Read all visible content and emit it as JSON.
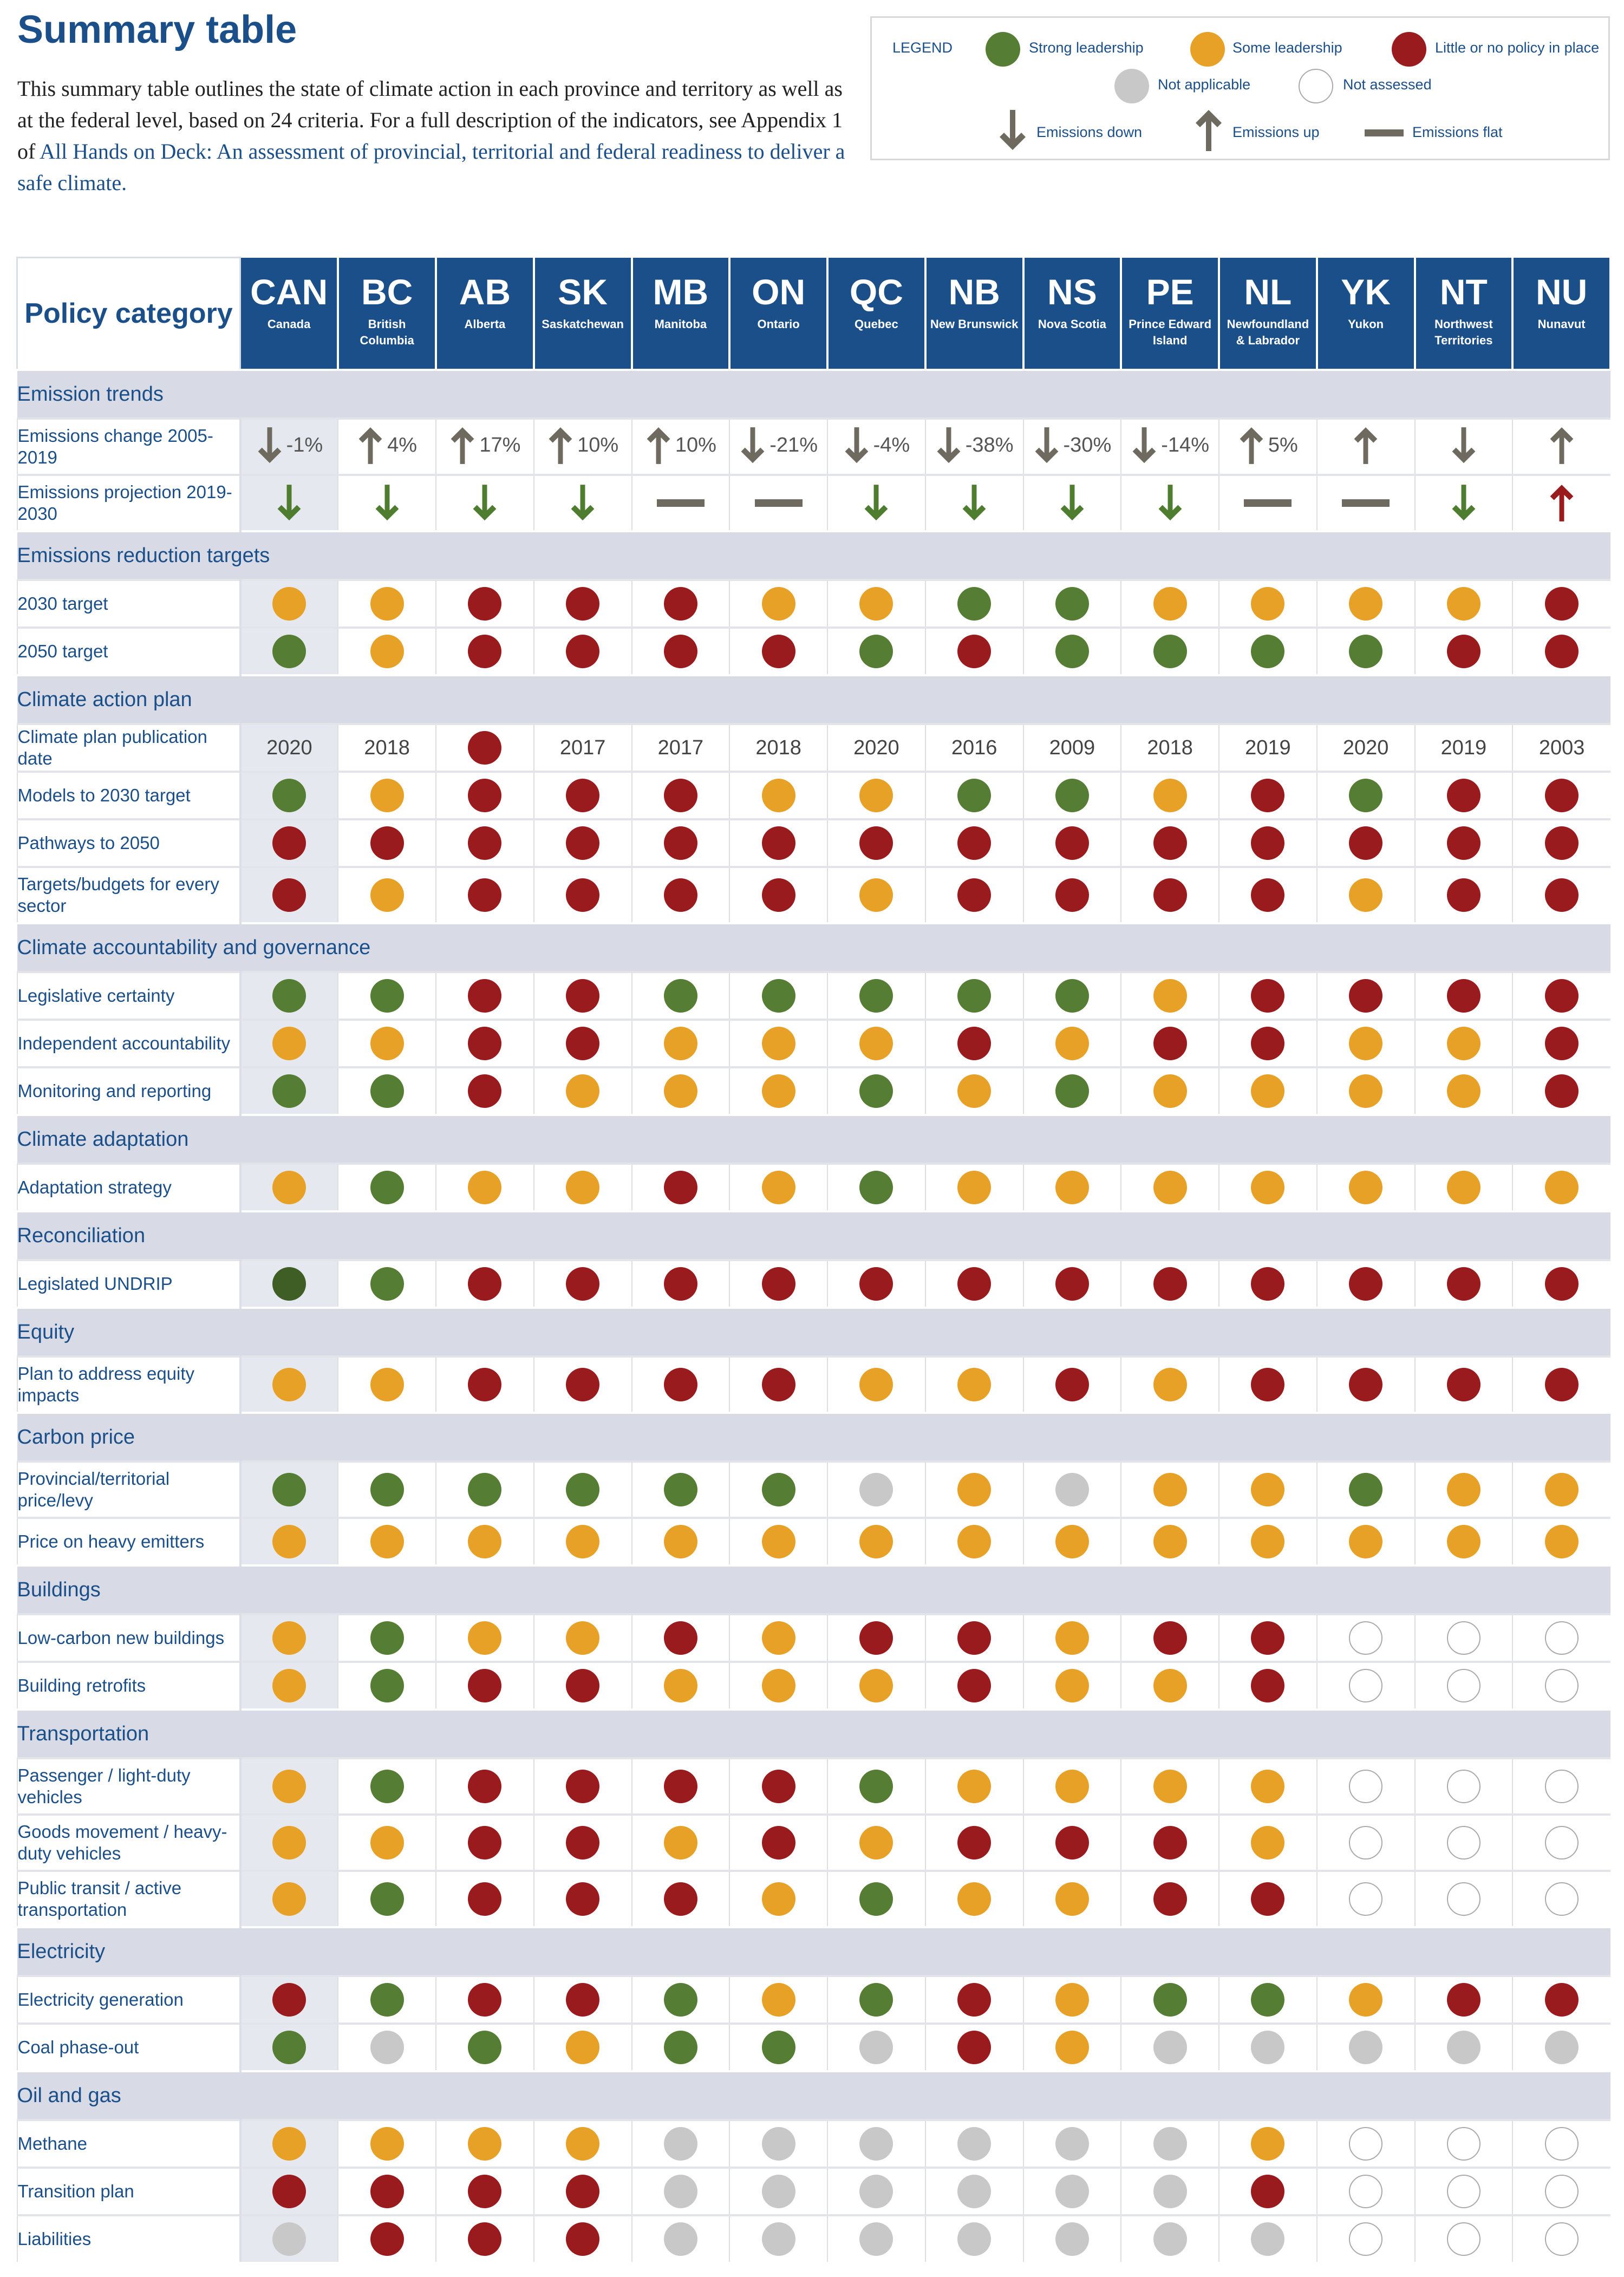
{
  "title": "Summary table",
  "intro": {
    "text": "This summary table outlines the state of climate action in each province and territory as well as at the federal level, based on 24 criteria. For a full description of the indicators, see Appendix 1 of ",
    "link": "All Hands on Deck: An assessment of provincial, territorial and federal readiness to deliver a safe climate."
  },
  "legend": {
    "title": "LEGEND",
    "strong": "Strong leadership",
    "some": "Some  leadership",
    "little": "Little or no policy in place",
    "na": "Not applicable",
    "notassessed": "Not assessed",
    "down": "Emissions down",
    "up": "Emissions up",
    "flat": "Emissions flat"
  },
  "colors": {
    "g": "#567d34",
    "G": "#3e5e26",
    "o": "#e8a127",
    "r": "#991b1d",
    "n": "#c8c8c8",
    "w": "#ffffff",
    "header": "#1b4f8a",
    "arrow": "#6f6a5f",
    "arrow_down": "#4f7d2f",
    "arrow_red": "#991b1d"
  },
  "header": {
    "policy_category": "Policy category"
  },
  "jurisdictions": [
    {
      "abbr": "CAN",
      "name": "Canada"
    },
    {
      "abbr": "BC",
      "name": "British Columbia"
    },
    {
      "abbr": "AB",
      "name": "Alberta"
    },
    {
      "abbr": "SK",
      "name": "Saskatchewan"
    },
    {
      "abbr": "MB",
      "name": "Manitoba"
    },
    {
      "abbr": "ON",
      "name": "Ontario"
    },
    {
      "abbr": "QC",
      "name": "Quebec"
    },
    {
      "abbr": "NB",
      "name": "New Brunswick"
    },
    {
      "abbr": "NS",
      "name": "Nova Scotia"
    },
    {
      "abbr": "PE",
      "name": "Prince Edward Island"
    },
    {
      "abbr": "NL",
      "name": "Newfoundland & Labrador"
    },
    {
      "abbr": "YK",
      "name": "Yukon"
    },
    {
      "abbr": "NT",
      "name": "Northwest Territories"
    },
    {
      "abbr": "NU",
      "name": "Nunavut"
    }
  ],
  "sections": [
    {
      "category": "Emission trends",
      "rows": [
        {
          "label": "Emissions change 2005-2019",
          "tall": true,
          "cells": [
            "down:-1%",
            "up:4%",
            "up:17%",
            "up:10%",
            "up:10%",
            "down:-21%",
            "down:-4%",
            "down:-38%",
            "down:-30%",
            "down:-14%",
            "up:5%",
            "up:",
            "down:",
            "up:"
          ]
        },
        {
          "label": "Emissions projection 2019-2030",
          "tall": true,
          "cells": [
            "gdown",
            "gdown",
            "gdown",
            "gdown",
            "flat",
            "flat",
            "gdown",
            "gdown",
            "gdown",
            "gdown",
            "flat",
            "flat",
            "gdown",
            "rup"
          ]
        }
      ]
    },
    {
      "category": "Emissions reduction targets",
      "rows": [
        {
          "label": "2030 target",
          "cells": [
            "o",
            "o",
            "r",
            "r",
            "r",
            "o",
            "o",
            "g",
            "g",
            "o",
            "o",
            "o",
            "o",
            "r"
          ]
        },
        {
          "label": "2050 target",
          "cells": [
            "g",
            "o",
            "r",
            "r",
            "r",
            "r",
            "g",
            "r",
            "g",
            "g",
            "g",
            "g",
            "r",
            "r"
          ]
        }
      ]
    },
    {
      "category": "Climate action plan",
      "rows": [
        {
          "label": "Climate plan publication date",
          "cells": [
            "y:2020",
            "y:2018",
            "r",
            "y:2017",
            "y:2017",
            "y:2018",
            "y:2020",
            "y:2016",
            "y:2009",
            "y:2018",
            "y:2019",
            "y:2020",
            "y:2019",
            "y:2003"
          ]
        },
        {
          "label": "Models to 2030 target",
          "cells": [
            "g",
            "o",
            "r",
            "r",
            "r",
            "o",
            "o",
            "g",
            "g",
            "o",
            "r",
            "g",
            "r",
            "r"
          ]
        },
        {
          "label": "Pathways to 2050",
          "cells": [
            "r",
            "r",
            "r",
            "r",
            "r",
            "r",
            "r",
            "r",
            "r",
            "r",
            "r",
            "r",
            "r",
            "r"
          ]
        },
        {
          "label": "Targets/budgets for every sector",
          "tall": true,
          "cells": [
            "r",
            "o",
            "r",
            "r",
            "r",
            "r",
            "o",
            "r",
            "r",
            "r",
            "r",
            "o",
            "r",
            "r"
          ]
        }
      ]
    },
    {
      "category": "Climate accountability and governance",
      "rows": [
        {
          "label": "Legislative certainty",
          "cells": [
            "g",
            "g",
            "r",
            "r",
            "g",
            "g",
            "g",
            "g",
            "g",
            "o",
            "r",
            "r",
            "r",
            "r"
          ]
        },
        {
          "label": "Independent accountability",
          "cells": [
            "o",
            "o",
            "r",
            "r",
            "o",
            "o",
            "o",
            "r",
            "o",
            "r",
            "r",
            "o",
            "o",
            "r"
          ]
        },
        {
          "label": "Monitoring and reporting",
          "cells": [
            "g",
            "g",
            "r",
            "o",
            "o",
            "o",
            "g",
            "o",
            "g",
            "o",
            "o",
            "o",
            "o",
            "r"
          ]
        }
      ]
    },
    {
      "category": "Climate adaptation",
      "rows": [
        {
          "label": "Adaptation strategy",
          "cells": [
            "o",
            "g",
            "o",
            "o",
            "r",
            "o",
            "g",
            "o",
            "o",
            "o",
            "o",
            "o",
            "o",
            "o"
          ]
        }
      ]
    },
    {
      "category": "Reconciliation",
      "rows": [
        {
          "label": "Legislated UNDRIP",
          "cells": [
            "G",
            "g",
            "r",
            "r",
            "r",
            "r",
            "r",
            "r",
            "r",
            "r",
            "r",
            "r",
            "r",
            "r"
          ]
        }
      ]
    },
    {
      "category": "Equity",
      "rows": [
        {
          "label": "Plan to address equity impacts",
          "tall": true,
          "cells": [
            "o",
            "o",
            "r",
            "r",
            "r",
            "r",
            "o",
            "o",
            "r",
            "o",
            "r",
            "r",
            "r",
            "r"
          ]
        }
      ]
    },
    {
      "category": "Carbon price",
      "rows": [
        {
          "label": "Provincial/territorial price/levy",
          "tall": true,
          "cells": [
            "g",
            "g",
            "g",
            "g",
            "g",
            "g",
            "n",
            "o",
            "n",
            "o",
            "o",
            "g",
            "o",
            "o"
          ]
        },
        {
          "label": "Price on heavy emitters",
          "cells": [
            "o",
            "o",
            "o",
            "o",
            "o",
            "o",
            "o",
            "o",
            "o",
            "o",
            "o",
            "o",
            "o",
            "o"
          ]
        }
      ]
    },
    {
      "category": "Buildings",
      "rows": [
        {
          "label": "Low-carbon new buildings",
          "cells": [
            "o",
            "g",
            "o",
            "o",
            "r",
            "o",
            "r",
            "r",
            "o",
            "r",
            "r",
            "w",
            "w",
            "w"
          ]
        },
        {
          "label": "Building retrofits",
          "cells": [
            "o",
            "g",
            "r",
            "r",
            "o",
            "o",
            "o",
            "r",
            "o",
            "o",
            "r",
            "w",
            "w",
            "w"
          ]
        }
      ]
    },
    {
      "category": "Transportation",
      "rows": [
        {
          "label": "Passenger / light-duty vehicles",
          "tall": true,
          "cells": [
            "o",
            "g",
            "r",
            "r",
            "r",
            "r",
            "g",
            "o",
            "o",
            "o",
            "o",
            "w",
            "w",
            "w"
          ]
        },
        {
          "label": "Goods movement / heavy-duty vehicles",
          "tall": true,
          "cells": [
            "o",
            "o",
            "r",
            "r",
            "o",
            "r",
            "o",
            "r",
            "r",
            "r",
            "o",
            "w",
            "w",
            "w"
          ]
        },
        {
          "label": "Public transit / active transportation",
          "tall": true,
          "cells": [
            "o",
            "g",
            "r",
            "r",
            "r",
            "o",
            "g",
            "o",
            "o",
            "r",
            "r",
            "w",
            "w",
            "w"
          ]
        }
      ]
    },
    {
      "category": "Electricity",
      "rows": [
        {
          "label": "Electricity generation",
          "cells": [
            "r",
            "g",
            "r",
            "r",
            "g",
            "o",
            "g",
            "r",
            "o",
            "g",
            "g",
            "o",
            "r",
            "r"
          ]
        },
        {
          "label": "Coal phase-out",
          "cells": [
            "g",
            "n",
            "g",
            "o",
            "g",
            "g",
            "n",
            "r",
            "o",
            "n",
            "n",
            "n",
            "n",
            "n"
          ]
        }
      ]
    },
    {
      "category": "Oil and gas",
      "rows": [
        {
          "label": "Methane",
          "cells": [
            "o",
            "o",
            "o",
            "o",
            "n",
            "n",
            "n",
            "n",
            "n",
            "n",
            "o",
            "w",
            "w",
            "w"
          ]
        },
        {
          "label": "Transition plan",
          "cells": [
            "r",
            "r",
            "r",
            "r",
            "n",
            "n",
            "n",
            "n",
            "n",
            "n",
            "r",
            "w",
            "w",
            "w"
          ]
        },
        {
          "label": "Liabilities",
          "cells": [
            "n",
            "r",
            "r",
            "r",
            "n",
            "n",
            "n",
            "n",
            "n",
            "n",
            "n",
            "w",
            "w",
            "w"
          ]
        }
      ]
    }
  ]
}
